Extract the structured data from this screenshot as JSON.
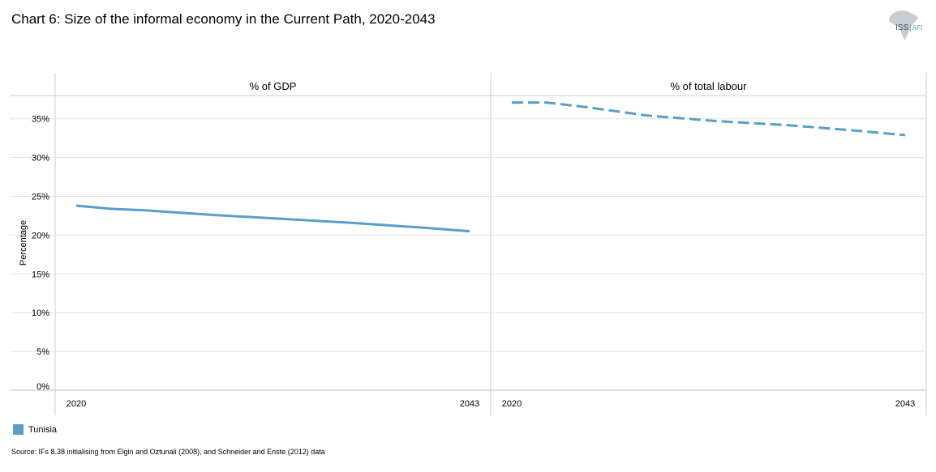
{
  "title": "Chart 6: Size of the informal economy in the Current Path, 2020-2043",
  "logo": {
    "main": "ISS",
    "sub": "AFI"
  },
  "source": "Source: IFs 8.38 initialising  from Elgin and Oztunali (2008), and Schneider and Enste (2012) data",
  "legend": {
    "label": "Tunisia",
    "color": "#5b9ec9"
  },
  "chart_data": {
    "type": "line",
    "ylabel": "Percentage",
    "ylim": [
      0,
      38
    ],
    "yticks": [
      0,
      5,
      10,
      15,
      20,
      25,
      30,
      35
    ],
    "ytick_labels": [
      "0%",
      "5%",
      "10%",
      "15%",
      "20%",
      "25%",
      "30%",
      "35%"
    ],
    "grid": true,
    "panels": [
      {
        "title": "% of GDP",
        "x_tick_labels": [
          "2020",
          "2043"
        ],
        "series": [
          {
            "name": "Tunisia",
            "style": "solid",
            "x": [
              2020,
              2022,
              2024,
              2028,
              2032,
              2036,
              2040,
              2043
            ],
            "values": [
              23.8,
              23.4,
              23.2,
              22.6,
              22.1,
              21.6,
              21.0,
              20.5
            ]
          }
        ]
      },
      {
        "title": "% of total labour",
        "x_tick_labels": [
          "2020",
          "2043"
        ],
        "series": [
          {
            "name": "Tunisia",
            "style": "dashed",
            "x": [
              2020,
              2022,
              2024,
              2028,
              2032,
              2036,
              2040,
              2043
            ],
            "values": [
              37.1,
              37.1,
              36.6,
              35.4,
              34.7,
              34.2,
              33.5,
              32.9
            ]
          }
        ]
      }
    ]
  }
}
